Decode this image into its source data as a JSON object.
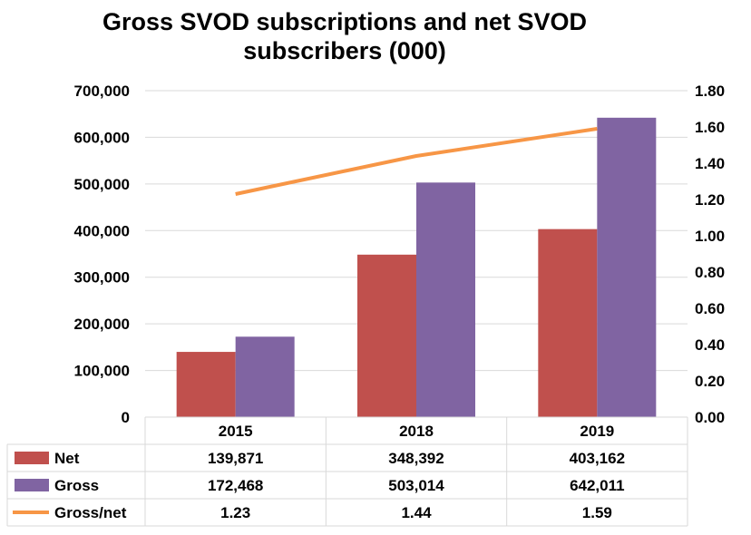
{
  "chart_data": {
    "type": "bar",
    "title": "Gross SVOD subscriptions and net SVOD subscribers (000)",
    "categories": [
      "2015",
      "2018",
      "2019"
    ],
    "series": [
      {
        "name": "Net",
        "type": "bar",
        "axis": "left",
        "color": "#c0504d",
        "values": [
          139871,
          348392,
          403162
        ],
        "labels": [
          "139,871",
          "348,392",
          "403,162"
        ]
      },
      {
        "name": "Gross",
        "type": "bar",
        "axis": "left",
        "color": "#8064a2",
        "values": [
          172468,
          503014,
          642011
        ],
        "labels": [
          "172,468",
          "503,014",
          "642,011"
        ]
      },
      {
        "name": "Gross/net",
        "type": "line",
        "axis": "right",
        "color": "#f79646",
        "values": [
          1.23,
          1.44,
          1.59
        ],
        "labels": [
          "1.23",
          "1.44",
          "1.59"
        ]
      }
    ],
    "y_left": {
      "min": 0,
      "max": 700000,
      "ticks": [
        "0",
        "100,000",
        "200,000",
        "300,000",
        "400,000",
        "500,000",
        "600,000",
        "700,000"
      ]
    },
    "y_right": {
      "min": 0,
      "max": 1.8,
      "ticks": [
        "0.00",
        "0.20",
        "0.40",
        "0.60",
        "0.80",
        "1.00",
        "1.20",
        "1.40",
        "1.60",
        "1.80"
      ]
    },
    "grid": true,
    "legend": "data-table-below"
  }
}
